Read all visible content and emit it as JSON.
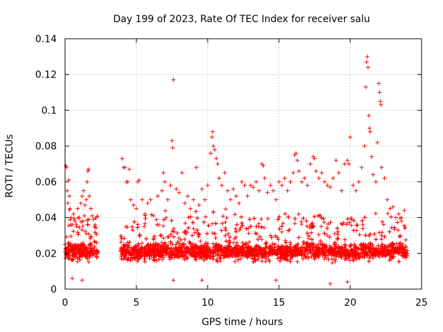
{
  "chart_data": {
    "type": "scatter",
    "title": "Day 199 of 2023, Rate Of TEC Index for receiver salu",
    "xlabel": "GPS time / hours",
    "ylabel": "ROTI / TECUs",
    "xlim": [
      0,
      25
    ],
    "ylim": [
      0,
      0.14
    ],
    "x_ticks": [
      "0",
      "5",
      "10",
      "15",
      "20",
      "25"
    ],
    "y_ticks": [
      "0",
      "0.02",
      "0.04",
      "0.06",
      "0.08",
      "0.1",
      "0.12",
      "0.14"
    ],
    "grid": true,
    "marker": "plus",
    "color": "#ff0000",
    "data_gap": [
      2.3,
      3.9
    ],
    "series": [
      {
        "points": [
          [
            0.05,
            0.069
          ],
          [
            0.1,
            0.068
          ],
          [
            0.15,
            0.055
          ],
          [
            0.2,
            0.048
          ],
          [
            0.25,
            0.061
          ],
          [
            0.3,
            0.052
          ],
          [
            0.35,
            0.045
          ],
          [
            0.4,
            0.04
          ],
          [
            0.5,
            0.036
          ],
          [
            0.6,
            0.042
          ],
          [
            0.7,
            0.038
          ],
          [
            0.8,
            0.035
          ],
          [
            0.9,
            0.045
          ],
          [
            1.0,
            0.04
          ],
          [
            1.1,
            0.048
          ],
          [
            1.2,
            0.052
          ],
          [
            1.3,
            0.055
          ],
          [
            1.4,
            0.047
          ],
          [
            1.5,
            0.05
          ],
          [
            1.55,
            0.06
          ],
          [
            1.6,
            0.066
          ],
          [
            1.65,
            0.067
          ],
          [
            1.7,
            0.052
          ],
          [
            1.8,
            0.045
          ],
          [
            1.9,
            0.041
          ],
          [
            2.0,
            0.039
          ],
          [
            2.1,
            0.036
          ],
          [
            0.5,
            0.006
          ],
          [
            1.2,
            0.005
          ],
          [
            4.0,
            0.073
          ],
          [
            4.1,
            0.068
          ],
          [
            4.2,
            0.068
          ],
          [
            4.3,
            0.06
          ],
          [
            4.4,
            0.06
          ],
          [
            4.5,
            0.067
          ],
          [
            4.6,
            0.05
          ],
          [
            4.8,
            0.047
          ],
          [
            5.0,
            0.045
          ],
          [
            5.1,
            0.06
          ],
          [
            5.2,
            0.061
          ],
          [
            5.4,
            0.05
          ],
          [
            5.6,
            0.042
          ],
          [
            5.8,
            0.048
          ],
          [
            6.0,
            0.05
          ],
          [
            6.2,
            0.041
          ],
          [
            6.5,
            0.052
          ],
          [
            6.8,
            0.055
          ],
          [
            6.9,
            0.065
          ],
          [
            7.0,
            0.06
          ],
          [
            7.2,
            0.05
          ],
          [
            7.4,
            0.058
          ],
          [
            7.5,
            0.083
          ],
          [
            7.55,
            0.079
          ],
          [
            7.6,
            0.117
          ],
          [
            7.8,
            0.056
          ],
          [
            8.0,
            0.054
          ],
          [
            8.2,
            0.065
          ],
          [
            8.4,
            0.048
          ],
          [
            8.6,
            0.052
          ],
          [
            8.8,
            0.045
          ],
          [
            9.0,
            0.05
          ],
          [
            9.2,
            0.068
          ],
          [
            9.4,
            0.047
          ],
          [
            9.6,
            0.056
          ],
          [
            9.8,
            0.05
          ],
          [
            10.0,
            0.058
          ],
          [
            10.2,
            0.076
          ],
          [
            10.3,
            0.085
          ],
          [
            10.35,
            0.088
          ],
          [
            10.4,
            0.08
          ],
          [
            10.5,
            0.078
          ],
          [
            10.6,
            0.073
          ],
          [
            10.7,
            0.07
          ],
          [
            10.8,
            0.062
          ],
          [
            11.0,
            0.058
          ],
          [
            11.2,
            0.065
          ],
          [
            11.4,
            0.055
          ],
          [
            11.6,
            0.05
          ],
          [
            11.8,
            0.056
          ],
          [
            12.0,
            0.052
          ],
          [
            12.2,
            0.048
          ],
          [
            12.4,
            0.06
          ],
          [
            12.6,
            0.058
          ],
          [
            12.8,
            0.052
          ],
          [
            13.0,
            0.058
          ],
          [
            13.2,
            0.057
          ],
          [
            13.4,
            0.06
          ],
          [
            13.6,
            0.055
          ],
          [
            13.8,
            0.07
          ],
          [
            13.9,
            0.069
          ],
          [
            14.0,
            0.062
          ],
          [
            14.2,
            0.054
          ],
          [
            14.4,
            0.058
          ],
          [
            14.6,
            0.055
          ],
          [
            14.8,
            0.05
          ],
          [
            15.0,
            0.06
          ],
          [
            15.2,
            0.058
          ],
          [
            15.4,
            0.062
          ],
          [
            15.6,
            0.055
          ],
          [
            15.8,
            0.06
          ],
          [
            16.0,
            0.065
          ],
          [
            16.1,
            0.075
          ],
          [
            16.2,
            0.076
          ],
          [
            16.3,
            0.072
          ],
          [
            16.4,
            0.066
          ],
          [
            16.6,
            0.06
          ],
          [
            16.8,
            0.062
          ],
          [
            17.0,
            0.058
          ],
          [
            17.2,
            0.07
          ],
          [
            17.4,
            0.074
          ],
          [
            17.5,
            0.073
          ],
          [
            17.6,
            0.066
          ],
          [
            17.8,
            0.062
          ],
          [
            18.0,
            0.065
          ],
          [
            18.2,
            0.06
          ],
          [
            18.4,
            0.058
          ],
          [
            18.6,
            0.057
          ],
          [
            18.8,
            0.062
          ],
          [
            19.0,
            0.072
          ],
          [
            19.2,
            0.065
          ],
          [
            19.4,
            0.055
          ],
          [
            19.6,
            0.07
          ],
          [
            19.8,
            0.072
          ],
          [
            19.9,
            0.07
          ],
          [
            20.0,
            0.085
          ],
          [
            20.2,
            0.058
          ],
          [
            20.4,
            0.055
          ],
          [
            20.6,
            0.06
          ],
          [
            20.8,
            0.068
          ],
          [
            21.0,
            0.08
          ],
          [
            21.1,
            0.113
          ],
          [
            21.15,
            0.127
          ],
          [
            21.2,
            0.13
          ],
          [
            21.25,
            0.124
          ],
          [
            21.3,
            0.097
          ],
          [
            21.35,
            0.09
          ],
          [
            21.4,
            0.088
          ],
          [
            21.5,
            0.074
          ],
          [
            21.6,
            0.064
          ],
          [
            21.8,
            0.06
          ],
          [
            21.9,
            0.082
          ],
          [
            22.0,
            0.115
          ],
          [
            22.05,
            0.11
          ],
          [
            22.1,
            0.105
          ],
          [
            22.15,
            0.103
          ],
          [
            22.2,
            0.068
          ],
          [
            22.4,
            0.062
          ],
          [
            22.6,
            0.05
          ],
          [
            22.8,
            0.045
          ],
          [
            23.0,
            0.046
          ],
          [
            23.2,
            0.04
          ],
          [
            23.4,
            0.042
          ],
          [
            23.6,
            0.038
          ],
          [
            23.8,
            0.044
          ],
          [
            9.6,
            0.005
          ],
          [
            14.8,
            0.005
          ],
          [
            18.6,
            0.003
          ],
          [
            19.8,
            0.004
          ],
          [
            7.6,
            0.005
          ]
        ]
      }
    ]
  }
}
